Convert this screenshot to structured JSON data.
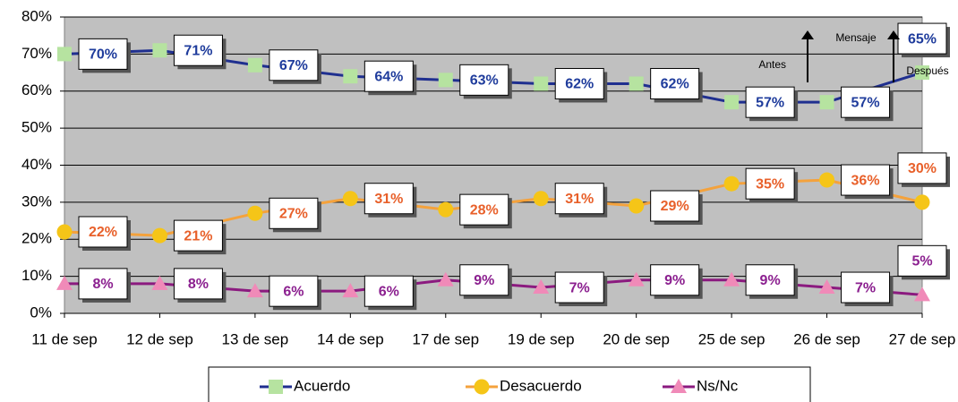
{
  "chart_data": {
    "type": "line",
    "categories": [
      "11 de sep",
      "12 de sep",
      "13 de sep",
      "14 de sep",
      "17 de sep",
      "19 de sep",
      "20 de sep",
      "25 de sep",
      "26 de sep",
      "27 de sep"
    ],
    "series": [
      {
        "name": "Acuerdo",
        "color": "#1f2f8f",
        "marker": "square",
        "marker_color": "#b6e3a0",
        "label_color": "#1f3c9c",
        "values": [
          70,
          71,
          67,
          64,
          63,
          62,
          62,
          57,
          57,
          65
        ],
        "value_labels": [
          "70%",
          "71%",
          "67%",
          "64%",
          "63%",
          "62%",
          "62%",
          "57%",
          "57%",
          "65%"
        ]
      },
      {
        "name": "Desacuerdo",
        "color": "#f4a23c",
        "marker": "circle",
        "marker_color": "#f5c518",
        "label_color": "#e8602a",
        "values": [
          22,
          21,
          27,
          31,
          28,
          31,
          29,
          35,
          36,
          30
        ],
        "value_labels": [
          "22%",
          "21%",
          "27%",
          "31%",
          "28%",
          "31%",
          "29%",
          "35%",
          "36%",
          "30%"
        ]
      },
      {
        "name": "Ns/Nc",
        "color": "#8b1a7f",
        "marker": "triangle",
        "marker_color": "#f08ab8",
        "label_color": "#8b1f8f",
        "values": [
          8,
          8,
          6,
          6,
          9,
          7,
          9,
          9,
          7,
          5
        ],
        "value_labels": [
          "8%",
          "8%",
          "6%",
          "6%",
          "9%",
          "7%",
          "9%",
          "9%",
          "7%",
          "5%"
        ]
      }
    ],
    "ylim": [
      0,
      80
    ],
    "yticks": [
      {
        "value": 0,
        "label": "0%"
      },
      {
        "value": 10,
        "label": "10%"
      },
      {
        "value": 20,
        "label": "20%"
      },
      {
        "value": 30,
        "label": "30%"
      },
      {
        "value": 40,
        "label": "40%"
      },
      {
        "value": 50,
        "label": "50%"
      },
      {
        "value": 60,
        "label": "60%"
      },
      {
        "value": 70,
        "label": "70%"
      },
      {
        "value": 80,
        "label": "80%"
      }
    ],
    "grid": true,
    "legend": "bottom",
    "annotations": [
      "Antes",
      "Mensaje",
      "Después"
    ]
  }
}
